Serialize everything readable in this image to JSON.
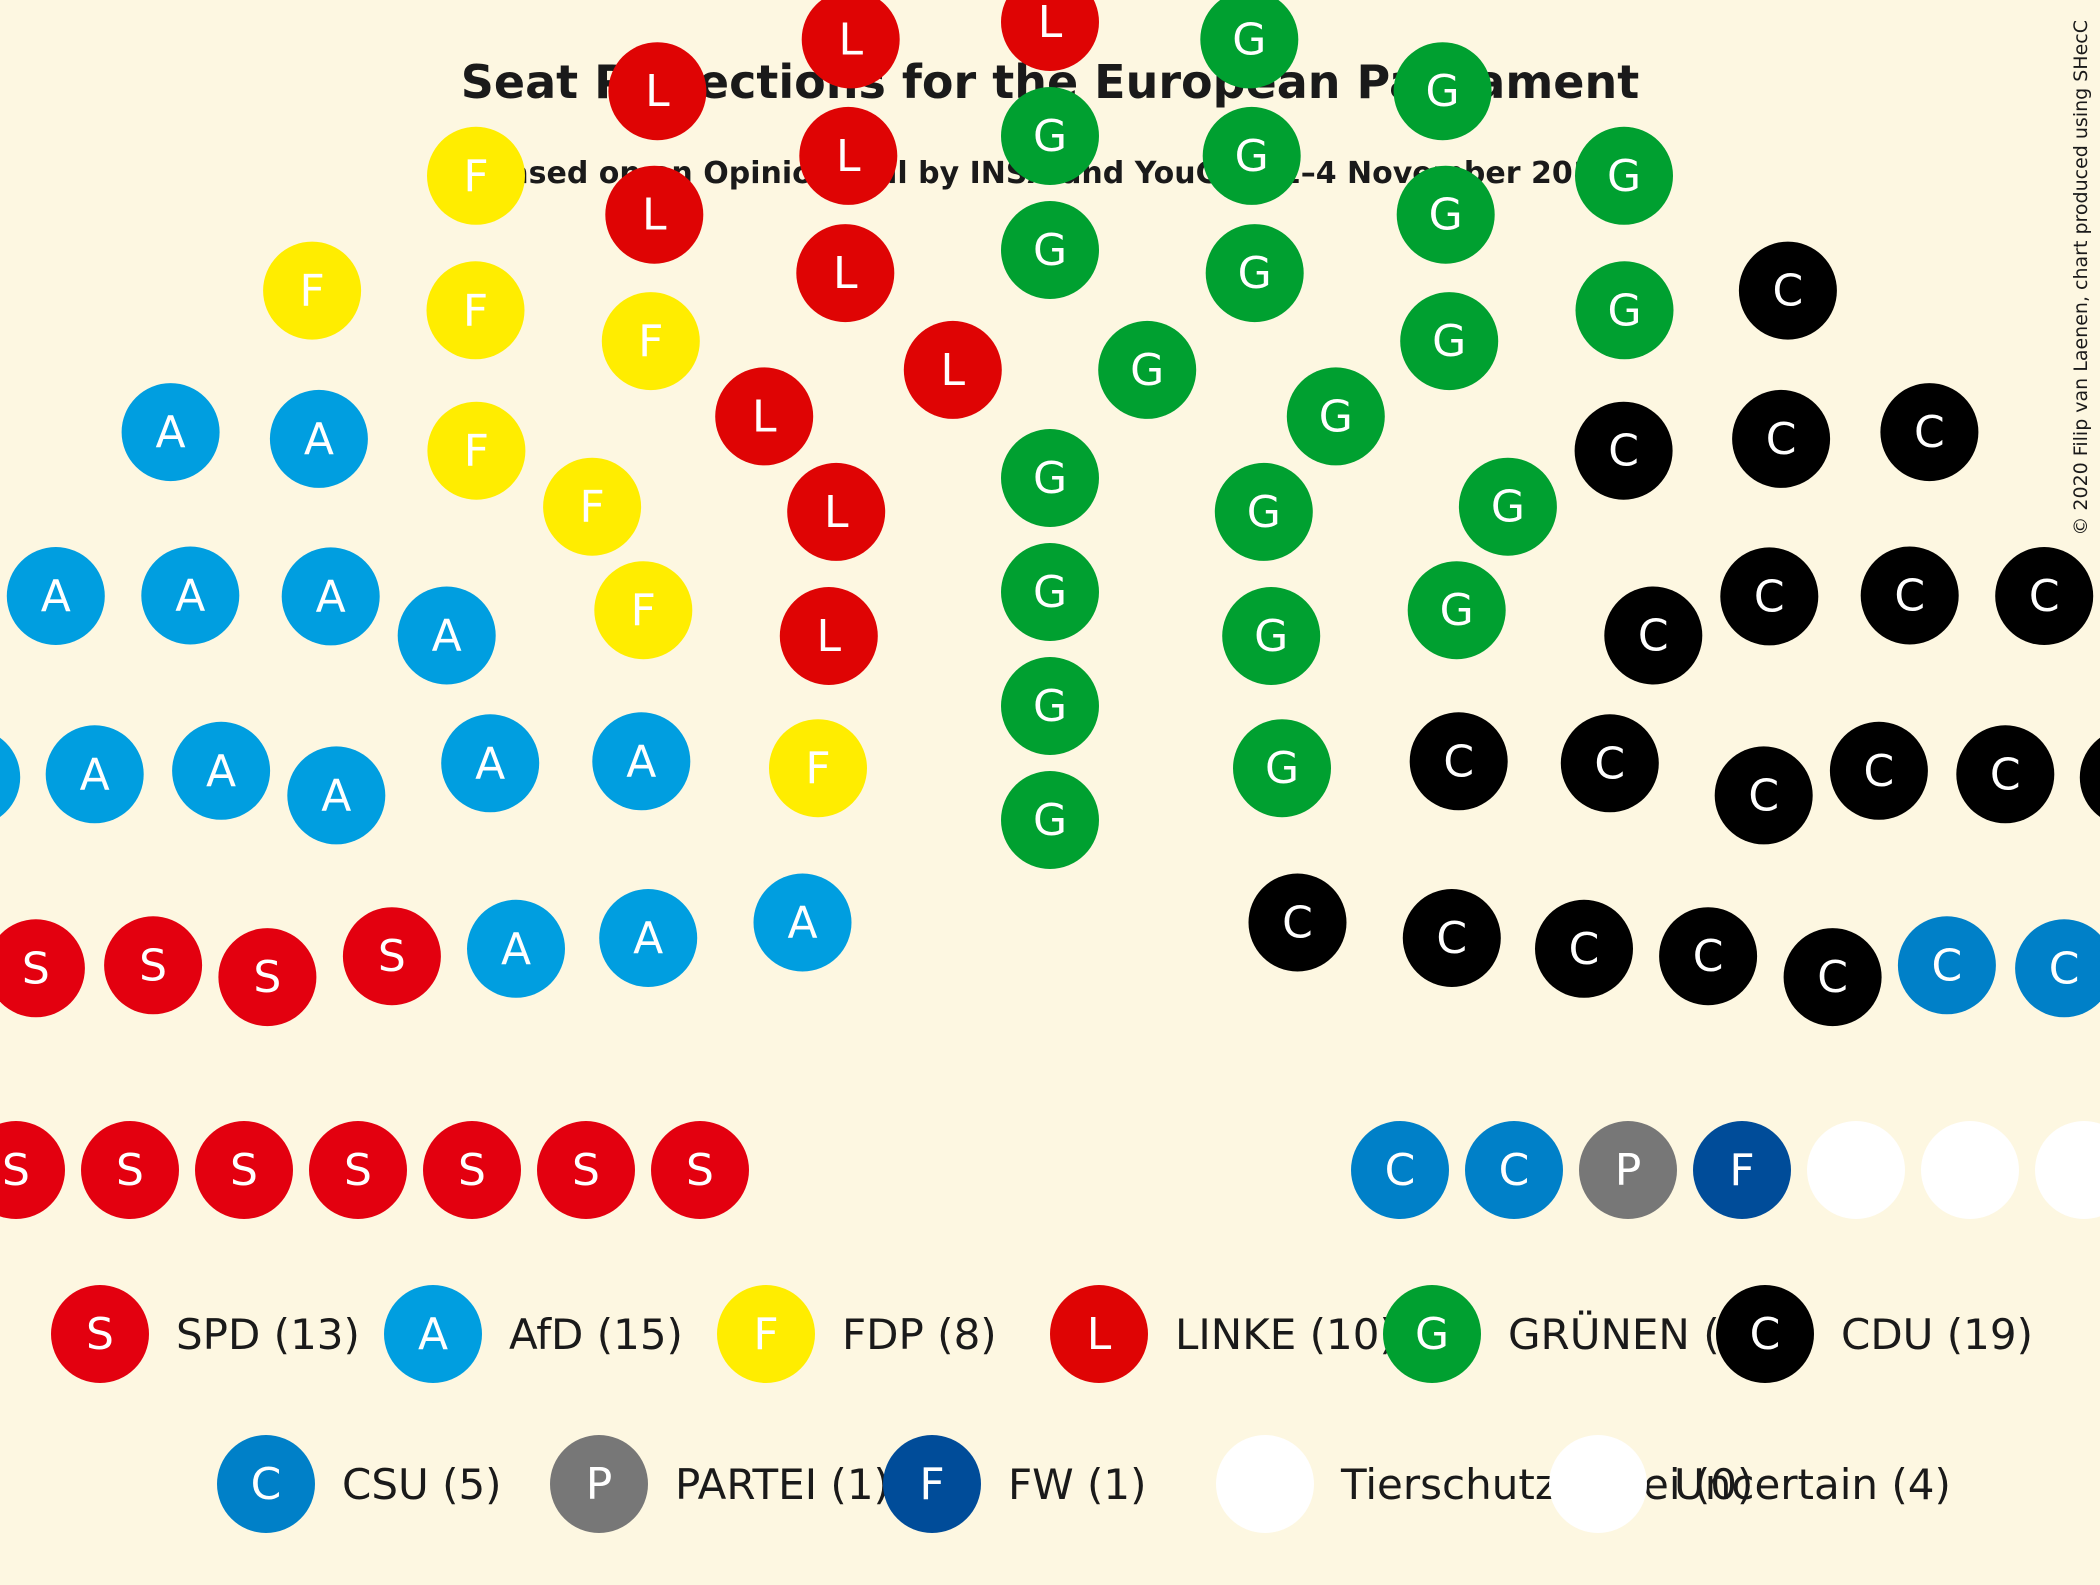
{
  "chart_data": {
    "type": "parliament",
    "title": "Seat Projections for the European Parliament",
    "subtitle": "Based on an Opinion Poll by INSA and YouGov, 1–4 November 2019",
    "copyright": "© 2020 Filip van Laenen, chart produced using SHecC",
    "series": [
      {
        "name": "SPD",
        "letter": "S",
        "seats": 13,
        "color": "#e3000f",
        "legend_label": "SPD (13)"
      },
      {
        "name": "AfD",
        "letter": "A",
        "seats": 15,
        "color": "#009ee0",
        "legend_label": "AfD (15)"
      },
      {
        "name": "FDP",
        "letter": "F",
        "seats": 8,
        "color": "#ffed00",
        "legend_label": "FDP (8)"
      },
      {
        "name": "LINKE",
        "letter": "L",
        "seats": 10,
        "color": "#df0404",
        "legend_label": "LINKE (10)"
      },
      {
        "name": "GRÜNEN",
        "letter": "G",
        "seats": 21,
        "color": "#00a030",
        "legend_label": "GRÜNEN (21)"
      },
      {
        "name": "CDU",
        "letter": "C",
        "seats": 19,
        "color": "#000000",
        "legend_label": "CDU (19)"
      },
      {
        "name": "CSU",
        "letter": "C",
        "seats": 5,
        "color": "#0080c8",
        "legend_label": "CSU (5)"
      },
      {
        "name": "PARTEI",
        "letter": "P",
        "seats": 1,
        "color": "#777777",
        "legend_label": "PARTEI (1)"
      },
      {
        "name": "FW",
        "letter": "F",
        "seats": 1,
        "color": "#004c99",
        "legend_label": "FW (1)"
      },
      {
        "name": "Tierschutzpartei",
        "letter": "",
        "seats": 0,
        "color": "#ffffff",
        "legend_label": "Tierschutzpartei (0)"
      },
      {
        "name": "Uncertain",
        "letter": "",
        "seats": 4,
        "color": "#ffffff",
        "legend_label": "Uncertain (4)"
      }
    ]
  }
}
